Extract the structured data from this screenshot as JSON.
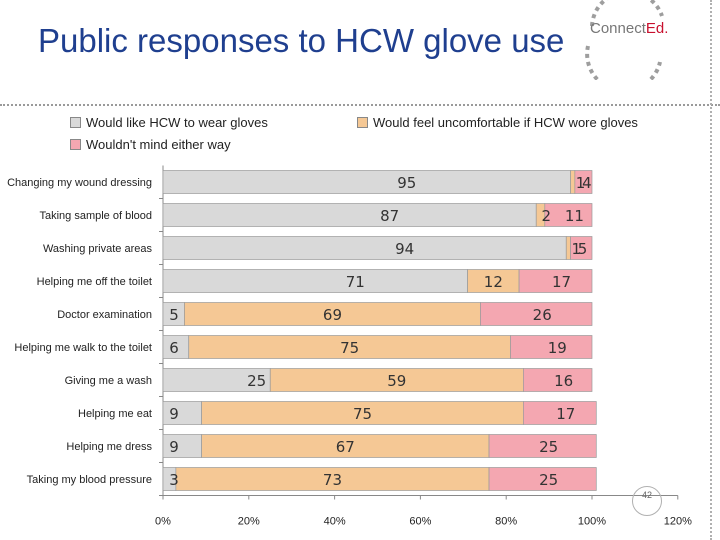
{
  "title": "Public responses to HCW glove use",
  "logo": {
    "text_main": "Connect",
    "text_accent": "Ed."
  },
  "page_number": "42",
  "colors": {
    "gloves": "#d9d9d9",
    "uncomfortable": "#f5c895",
    "either": "#f4a7b1",
    "title": "#1f3f8f"
  },
  "chart_data": {
    "type": "bar",
    "orientation": "horizontal",
    "stacked": true,
    "title": "Public responses to HCW glove use",
    "categories": [
      "Changing my wound dressing",
      "Taking sample of blood",
      "Washing private areas",
      "Helping me off the toilet",
      "Doctor examination",
      "Helping me walk to the toilet",
      "Giving me a wash",
      "Helping me eat",
      "Helping me dress",
      "Taking my blood pressure"
    ],
    "series": [
      {
        "name": "Would like HCW to wear gloves",
        "values": [
          95,
          87,
          94,
          71,
          5,
          6,
          25,
          9,
          9,
          3
        ]
      },
      {
        "name": "Would feel uncomfortable if HCW wore gloves",
        "values": [
          1,
          2,
          1,
          12,
          69,
          75,
          59,
          75,
          67,
          73
        ]
      },
      {
        "name": "Wouldn't mind either way",
        "values": [
          4,
          11,
          5,
          17,
          26,
          19,
          16,
          17,
          25,
          25
        ]
      }
    ],
    "x_ticks": [
      "0%",
      "20%",
      "40%",
      "60%",
      "80%",
      "100%",
      "120%"
    ],
    "xlim": [
      0,
      120
    ],
    "legend_position": "top"
  }
}
